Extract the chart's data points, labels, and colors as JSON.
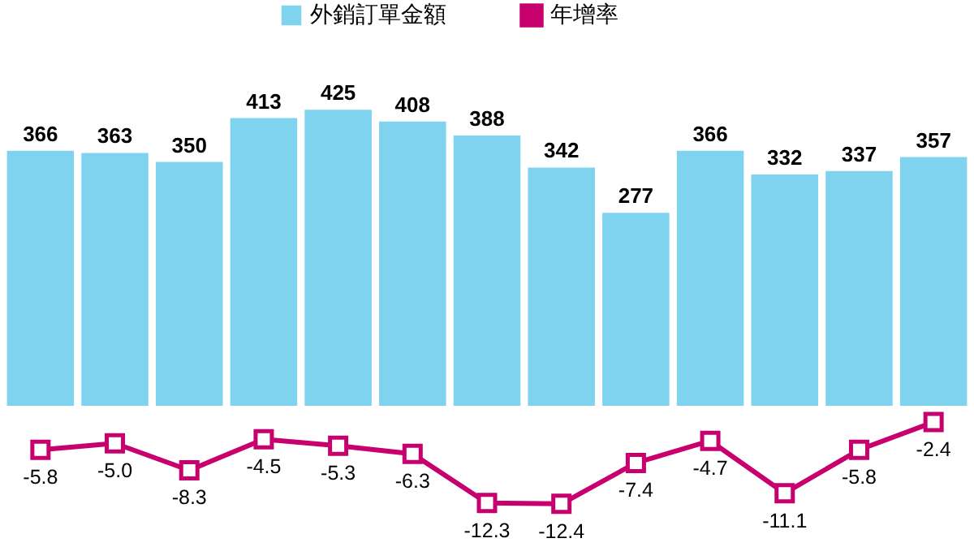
{
  "chart_data": [
    {
      "type": "bar",
      "categories": [
        null,
        null,
        null,
        null,
        null,
        null,
        null,
        null,
        null,
        null,
        null,
        null,
        null
      ],
      "series": [
        {
          "name": "外銷訂單金額",
          "color": "#7fd3ef",
          "values": [
            366,
            363,
            350,
            413,
            425,
            408,
            388,
            342,
            277,
            366,
            332,
            337,
            357
          ]
        }
      ],
      "data_labels": true,
      "legend": "top"
    },
    {
      "type": "line",
      "categories": [
        null,
        null,
        null,
        null,
        null,
        null,
        null,
        null,
        null,
        null,
        null,
        null,
        null
      ],
      "series": [
        {
          "name": "年增率",
          "color": "#c8006e",
          "values": [
            -5.8,
            -5.0,
            -8.3,
            -4.5,
            -5.3,
            -6.3,
            -12.3,
            -12.4,
            -7.4,
            -4.7,
            -11.1,
            -5.8,
            -2.4
          ],
          "value_labels": [
            "-5.8",
            "-5.0",
            "-8.3",
            "-4.5",
            "-5.3",
            "-6.3",
            "-12.3",
            "-12.4",
            "-7.4",
            "-4.7",
            "-11.1",
            "-5.8",
            "-2.4"
          ]
        }
      ],
      "marker": "square",
      "legend": "top"
    }
  ]
}
